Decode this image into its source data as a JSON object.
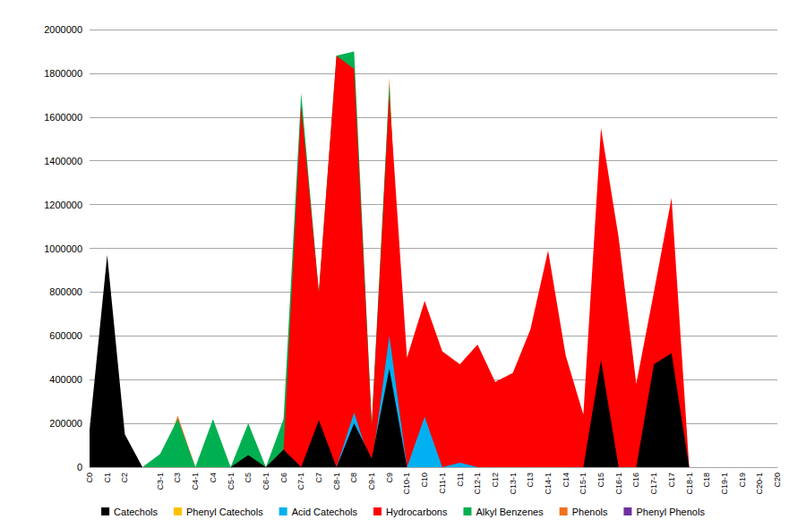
{
  "chart_data": {
    "type": "area",
    "categories": [
      "C0",
      "C1",
      "C2",
      null,
      "C3-1",
      "C3",
      "C4-1",
      "C4",
      "C5-1",
      "C5",
      "C6-1",
      "C6",
      "C7-1",
      "C7",
      "C8-1",
      "C8",
      "C9-1",
      "C9",
      "C10-1",
      "C10",
      "C11-1",
      "C11",
      "C12-1",
      "C12",
      "C13-1",
      "C13",
      "C14-1",
      "C14",
      "C15-1",
      "C15",
      "C16-1",
      "C16",
      "C17-1",
      "C17",
      "C18-1",
      "C18",
      "C19-1",
      "C19",
      "C20-1",
      "C20"
    ],
    "series": [
      {
        "name": "Catechols",
        "color": "#000000",
        "values": [
          170000,
          970000,
          150000,
          0,
          0,
          0,
          0,
          0,
          0,
          55000,
          0,
          80000,
          0,
          215000,
          0,
          200000,
          40000,
          450000,
          0,
          0,
          0,
          0,
          0,
          0,
          0,
          0,
          0,
          0,
          0,
          490000,
          0,
          0,
          470000,
          520000,
          0,
          0,
          0,
          0,
          0,
          0
        ]
      },
      {
        "name": "Phenyl Catechols",
        "color": "#ffc000",
        "values": [
          0,
          0,
          0,
          0,
          0,
          0,
          0,
          0,
          0,
          0,
          0,
          0,
          0,
          0,
          0,
          0,
          0,
          0,
          0,
          0,
          0,
          0,
          0,
          0,
          0,
          0,
          0,
          0,
          0,
          0,
          0,
          0,
          0,
          0,
          0,
          0,
          0,
          0,
          0,
          0
        ]
      },
      {
        "name": "Acid Catechols",
        "color": "#00b0f0",
        "values": [
          0,
          0,
          0,
          0,
          0,
          0,
          0,
          0,
          0,
          0,
          0,
          0,
          0,
          0,
          0,
          250000,
          0,
          600000,
          0,
          230000,
          0,
          20000,
          0,
          0,
          0,
          0,
          0,
          0,
          0,
          0,
          0,
          0,
          0,
          0,
          0,
          0,
          0,
          0,
          0,
          0
        ]
      },
      {
        "name": "Hydrocarbons",
        "color": "#ff0000",
        "values": [
          0,
          0,
          0,
          0,
          0,
          0,
          0,
          0,
          0,
          0,
          0,
          80000,
          1650000,
          800000,
          1880000,
          1820000,
          190000,
          1700000,
          500000,
          760000,
          530000,
          470000,
          560000,
          390000,
          430000,
          630000,
          990000,
          510000,
          240000,
          1550000,
          1050000,
          380000,
          800000,
          1230000,
          0,
          0,
          0,
          0,
          0,
          0
        ]
      },
      {
        "name": "Alkyl Benzenes",
        "color": "#00b050",
        "values": [
          0,
          0,
          0,
          0,
          60000,
          220000,
          0,
          220000,
          0,
          200000,
          0,
          220000,
          1710000,
          800000,
          1880000,
          1900000,
          200000,
          1750000,
          0,
          0,
          0,
          0,
          0,
          0,
          0,
          0,
          0,
          0,
          0,
          0,
          0,
          0,
          0,
          0,
          0,
          0,
          0,
          0,
          0,
          0
        ]
      },
      {
        "name": "Phenols",
        "color": "#f07020",
        "values": [
          0,
          0,
          0,
          0,
          0,
          235000,
          0,
          0,
          0,
          0,
          0,
          0,
          0,
          0,
          0,
          0,
          0,
          1780000,
          0,
          0,
          0,
          0,
          0,
          0,
          0,
          0,
          0,
          0,
          0,
          0,
          0,
          0,
          0,
          0,
          0,
          0,
          0,
          0,
          0,
          0
        ]
      },
      {
        "name": "Phenyl Phenols",
        "color": "#7030a0",
        "values": [
          0,
          0,
          0,
          0,
          0,
          0,
          0,
          0,
          0,
          0,
          0,
          0,
          0,
          0,
          0,
          0,
          0,
          0,
          0,
          0,
          0,
          0,
          0,
          0,
          0,
          0,
          0,
          0,
          0,
          0,
          0,
          0,
          0,
          0,
          0,
          0,
          0,
          0,
          0,
          0
        ]
      }
    ],
    "ylim": [
      0,
      2000000
    ],
    "yticks": [
      0,
      200000,
      400000,
      600000,
      800000,
      1000000,
      1200000,
      1400000,
      1600000,
      1800000,
      2000000
    ],
    "grid": true,
    "legend": "bottom"
  }
}
